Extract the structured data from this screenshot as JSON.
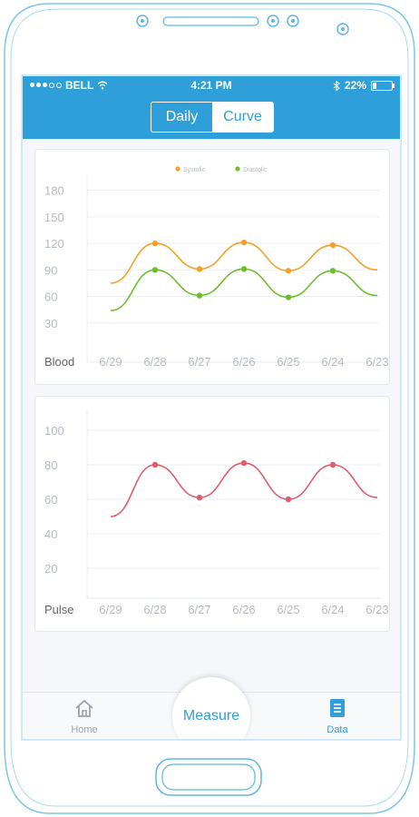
{
  "status_bar": {
    "carrier": "BELL",
    "time": "4:21 PM",
    "battery_percent": "22%",
    "battery_level": 0.22,
    "signal_bars": 3,
    "signal_total": 5
  },
  "segmented_control": {
    "items": [
      "Daily",
      "Curve"
    ],
    "selected": "Curve"
  },
  "chart_data": [
    {
      "type": "line",
      "ylabel": "Blood",
      "categories": [
        "6/29",
        "6/28",
        "6/27",
        "6/26",
        "6/25",
        "6/24",
        "6/23"
      ],
      "y_ticks": [
        30,
        60,
        90,
        120,
        150,
        180
      ],
      "ylim": [
        0,
        195
      ],
      "grid": true,
      "legend_position": "top-center",
      "series": [
        {
          "name": "Systolic",
          "color": "#f5a028",
          "values": [
            75,
            120,
            91,
            121,
            89,
            118,
            90
          ]
        },
        {
          "name": "Diastolic",
          "color": "#6dbf2d",
          "values": [
            44,
            90,
            61,
            91,
            59,
            89,
            61
          ]
        }
      ]
    },
    {
      "type": "line",
      "ylabel": "Pulse",
      "categories": [
        "6/29",
        "6/28",
        "6/27",
        "6/26",
        "6/25",
        "6/24",
        "6/23"
      ],
      "y_ticks": [
        20,
        40,
        60,
        80,
        100
      ],
      "ylim": [
        10,
        110
      ],
      "grid": true,
      "series": [
        {
          "name": "",
          "color": "#e05c6c",
          "values": [
            50,
            80,
            61,
            81,
            60,
            80,
            61
          ]
        }
      ]
    }
  ],
  "tab_bar": {
    "home_label": "Home",
    "measure_label": "Measure",
    "data_label": "Data",
    "home_icon": "home-icon",
    "data_icon": "document-icon",
    "accent_color": "#2e9fd8",
    "inactive_color": "#9aa3ab"
  }
}
